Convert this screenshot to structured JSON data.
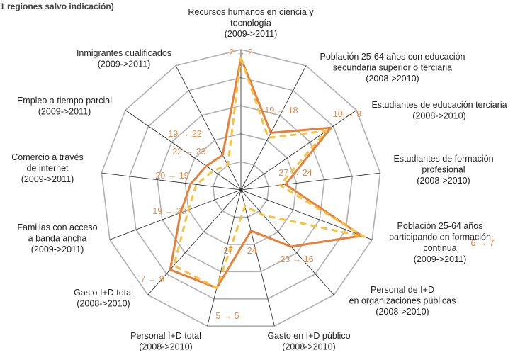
{
  "header": {
    "text": "1 regiones salvo indicación)"
  },
  "colors": {
    "series_2009": "#f5c242",
    "series_2011": "#e8803a",
    "rank_label": "#ea8a45",
    "grid": "#b0b0b0",
    "spokes": "#222222"
  },
  "chart_data": {
    "type": "radar",
    "title": "",
    "scale_max": 5,
    "rings": 5,
    "axes": [
      {
        "label": [
          "Recursos humanos en ciencia y",
          "tecnología",
          "(2009->2011)"
        ],
        "rank": "2 → 2"
      },
      {
        "label": [
          "Población 25-64 años con educación",
          "secundaria superior o terciaria",
          "(2008->2010)"
        ],
        "rank": "19 → 18"
      },
      {
        "label": [
          "Estudiantes de educación terciaria",
          "(2008->2010)"
        ],
        "rank": "10 → 9"
      },
      {
        "label": [
          "Estudiantes de formación",
          "profesional",
          "(2008->2010)"
        ],
        "rank": "27 → 24"
      },
      {
        "label": [
          "Población 25-64 años",
          "participando en formación",
          "continua",
          "(2009->2011)"
        ],
        "rank": "6 → 7"
      },
      {
        "label": [
          "Personal de I+D",
          "en organizaciones públicas",
          "(2008->2010)"
        ],
        "rank": "23 → 16"
      },
      {
        "label": [
          "Gasto en I+D  público",
          "(2008->2010)"
        ],
        "rank": "27 → 24"
      },
      {
        "label": [
          "Personal I+D total",
          "(2008->2010)"
        ],
        "rank": "5 → 5"
      },
      {
        "label": [
          "Gasto I+D total",
          "(2008->2010)"
        ],
        "rank": "7 → 9"
      },
      {
        "label": [
          "Familias con acceso",
          "a banda ancha",
          "(2009->2011)"
        ],
        "rank": "19 → 20"
      },
      {
        "label": [
          "Comercio a través",
          "de internet",
          "(2009->2011)"
        ],
        "rank": "20 → 19"
      },
      {
        "label": [
          "Empleo a tiempo parcial",
          "(2009->2011)"
        ],
        "rank": "22 → 23"
      },
      {
        "label": [
          "Inmigrantes cualificados",
          "(2009->2011)"
        ],
        "rank": "19 → 22"
      }
    ],
    "series": [
      {
        "period": "initial",
        "style": "dashed",
        "values": [
          4.7,
          2.1,
          3.7,
          1.4,
          4.7,
          1.2,
          0.6,
          3.6,
          3.6,
          2.0,
          1.6,
          1.2,
          1.0
        ]
      },
      {
        "period": "final",
        "style": "solid",
        "values": [
          4.7,
          2.3,
          3.9,
          1.6,
          4.6,
          2.7,
          1.5,
          3.6,
          3.8,
          2.3,
          1.8,
          1.5,
          1.4
        ]
      }
    ]
  }
}
